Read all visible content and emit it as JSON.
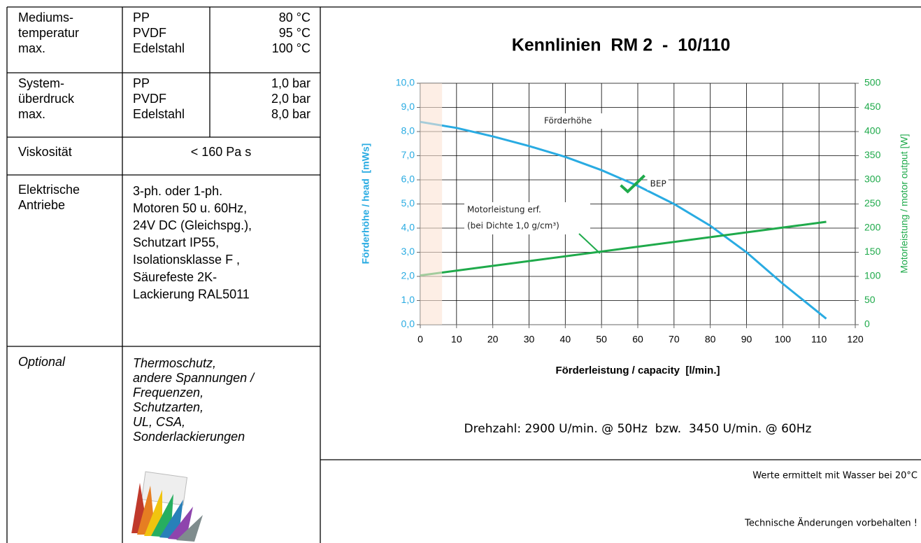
{
  "table": {
    "rows": [
      {
        "label": [
          "Mediums-",
          "temperatur",
          "max."
        ],
        "materials": [
          "PP",
          "PVDF",
          "Edelstahl"
        ],
        "values": [
          "80 °C",
          "95 °C",
          "100 °C"
        ]
      },
      {
        "label": [
          "System-",
          "überdruck",
          "max."
        ],
        "materials": [
          "PP",
          "PVDF",
          "Edelstahl"
        ],
        "values": [
          "1,0 bar",
          "2,0 bar",
          "8,0 bar"
        ]
      },
      {
        "label": [
          "Viskosität"
        ],
        "text": [
          "< 160 Pa s"
        ]
      },
      {
        "label": [
          "Elektrische",
          "Antriebe"
        ],
        "text": [
          "3-ph. oder 1-ph.",
          "Motoren 50 u. 60Hz,",
          "24V DC (Gleichspg.),",
          "Schutzart IP55,",
          "Isolationsklasse F ,",
          "Säurefeste 2K-",
          "Lackierung RAL5011"
        ]
      },
      {
        "label": [
          "Optional"
        ],
        "text": [
          "Thermoschutz,",
          "andere Spannungen /",
          "Frequenzen,",
          "Schutzarten,",
          "UL, CSA,",
          "Sonderlackierungen"
        ]
      }
    ]
  },
  "chart_data": {
    "type": "line",
    "title": "Kennlinien  RM 2  -  10/110",
    "xlabel": "Förderleistung / capacity  [l/min.]",
    "ylabel": "Förderhöhe / head  [mWs]",
    "y2label": "Motorleistung / motor output [W]",
    "xlim": [
      0,
      120
    ],
    "xticks": [
      0,
      10,
      20,
      30,
      40,
      50,
      60,
      70,
      80,
      90,
      100,
      110,
      120
    ],
    "ylim": [
      0,
      10
    ],
    "yticks": [
      {
        "value": 0,
        "label": "0,0"
      },
      {
        "value": 1,
        "label": "1,0"
      },
      {
        "value": 2,
        "label": "2,0"
      },
      {
        "value": 3,
        "label": "3,0"
      },
      {
        "value": 4,
        "label": "4,0"
      },
      {
        "value": 5,
        "label": "5,0"
      },
      {
        "value": 6,
        "label": "6,0"
      },
      {
        "value": 7,
        "label": "7,0"
      },
      {
        "value": 8,
        "label": "8,0"
      },
      {
        "value": 9,
        "label": "9,0"
      },
      {
        "value": 10,
        "label": "10,0"
      }
    ],
    "y2lim": [
      0,
      500
    ],
    "y2ticks": [
      0,
      50,
      100,
      150,
      200,
      250,
      300,
      350,
      400,
      450,
      500
    ],
    "grid": true,
    "highlight_xlim": [
      0,
      6
    ],
    "highlight_color": "#fbe3d3",
    "series": [
      {
        "name": "Förderhöhe",
        "color": "#29abe2",
        "x": [
          0,
          10,
          20,
          30,
          40,
          50,
          60,
          70,
          80,
          90,
          100,
          112
        ],
        "values": [
          8.4,
          8.15,
          7.8,
          7.4,
          6.95,
          6.4,
          5.75,
          5.0,
          4.1,
          3.0,
          1.7,
          0.25
        ]
      },
      {
        "name": "Motorleistung erf.",
        "note": "(bei Dichte 1,0 g/cm³)",
        "color": "#1faa4b",
        "axis": "y2",
        "x": [
          0,
          112
        ],
        "values": [
          102,
          213
        ]
      }
    ],
    "bep": {
      "label": "BEP",
      "x": 58,
      "y": 5.6
    },
    "footnote": "Drehzahl: 2900 U/min. @ 50Hz  bzw.  3450 U/min. @ 60Hz"
  },
  "notes": [
    "Werte ermittelt mit Wasser bei 20°C",
    "Technische Änderungen vorbehalten !"
  ]
}
